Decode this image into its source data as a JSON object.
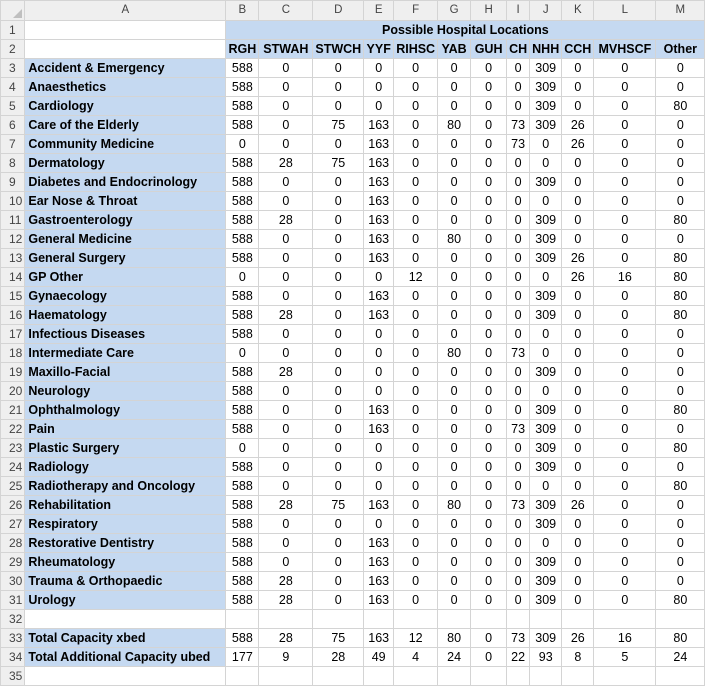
{
  "columns": [
    "A",
    "B",
    "C",
    "D",
    "E",
    "F",
    "G",
    "H",
    "I",
    "J",
    "K",
    "L",
    "M"
  ],
  "title": "Possible Hospital Locations",
  "headers": [
    "RGH",
    "STWAH",
    "STWCH",
    "YYF",
    "RIHSC",
    "YAB",
    "GUH",
    "CH",
    "NHH",
    "CCH",
    "MVHSCF",
    "Other"
  ],
  "rows": [
    {
      "n": "3",
      "label": "Accident & Emergency",
      "v": [
        "588",
        "0",
        "0",
        "0",
        "0",
        "0",
        "0",
        "0",
        "309",
        "0",
        "0",
        "0"
      ]
    },
    {
      "n": "4",
      "label": "Anaesthetics",
      "v": [
        "588",
        "0",
        "0",
        "0",
        "0",
        "0",
        "0",
        "0",
        "309",
        "0",
        "0",
        "0"
      ]
    },
    {
      "n": "5",
      "label": "Cardiology",
      "v": [
        "588",
        "0",
        "0",
        "0",
        "0",
        "0",
        "0",
        "0",
        "309",
        "0",
        "0",
        "80"
      ]
    },
    {
      "n": "6",
      "label": "Care of the Elderly",
      "v": [
        "588",
        "0",
        "75",
        "163",
        "0",
        "80",
        "0",
        "73",
        "309",
        "26",
        "0",
        "0"
      ]
    },
    {
      "n": "7",
      "label": "Community Medicine",
      "v": [
        "0",
        "0",
        "0",
        "163",
        "0",
        "0",
        "0",
        "73",
        "0",
        "26",
        "0",
        "0"
      ]
    },
    {
      "n": "8",
      "label": "Dermatology",
      "v": [
        "588",
        "28",
        "75",
        "163",
        "0",
        "0",
        "0",
        "0",
        "0",
        "0",
        "0",
        "0"
      ]
    },
    {
      "n": "9",
      "label": "Diabetes and Endocrinology",
      "v": [
        "588",
        "0",
        "0",
        "163",
        "0",
        "0",
        "0",
        "0",
        "309",
        "0",
        "0",
        "0"
      ]
    },
    {
      "n": "10",
      "label": "Ear Nose & Throat",
      "v": [
        "588",
        "0",
        "0",
        "163",
        "0",
        "0",
        "0",
        "0",
        "0",
        "0",
        "0",
        "0"
      ]
    },
    {
      "n": "11",
      "label": "Gastroenterology",
      "v": [
        "588",
        "28",
        "0",
        "163",
        "0",
        "0",
        "0",
        "0",
        "309",
        "0",
        "0",
        "80"
      ]
    },
    {
      "n": "12",
      "label": "General Medicine",
      "v": [
        "588",
        "0",
        "0",
        "163",
        "0",
        "80",
        "0",
        "0",
        "309",
        "0",
        "0",
        "0"
      ]
    },
    {
      "n": "13",
      "label": "General Surgery",
      "v": [
        "588",
        "0",
        "0",
        "163",
        "0",
        "0",
        "0",
        "0",
        "309",
        "26",
        "0",
        "80"
      ]
    },
    {
      "n": "14",
      "label": "GP Other",
      "v": [
        "0",
        "0",
        "0",
        "0",
        "12",
        "0",
        "0",
        "0",
        "0",
        "26",
        "16",
        "80"
      ]
    },
    {
      "n": "15",
      "label": "Gynaecology",
      "v": [
        "588",
        "0",
        "0",
        "163",
        "0",
        "0",
        "0",
        "0",
        "309",
        "0",
        "0",
        "80"
      ]
    },
    {
      "n": "16",
      "label": "Haematology",
      "v": [
        "588",
        "28",
        "0",
        "163",
        "0",
        "0",
        "0",
        "0",
        "309",
        "0",
        "0",
        "80"
      ]
    },
    {
      "n": "17",
      "label": "Infectious Diseases",
      "v": [
        "588",
        "0",
        "0",
        "0",
        "0",
        "0",
        "0",
        "0",
        "0",
        "0",
        "0",
        "0"
      ]
    },
    {
      "n": "18",
      "label": "Intermediate Care",
      "v": [
        "0",
        "0",
        "0",
        "0",
        "0",
        "80",
        "0",
        "73",
        "0",
        "0",
        "0",
        "0"
      ]
    },
    {
      "n": "19",
      "label": "Maxillo-Facial",
      "v": [
        "588",
        "28",
        "0",
        "0",
        "0",
        "0",
        "0",
        "0",
        "309",
        "0",
        "0",
        "0"
      ]
    },
    {
      "n": "20",
      "label": "Neurology",
      "v": [
        "588",
        "0",
        "0",
        "0",
        "0",
        "0",
        "0",
        "0",
        "0",
        "0",
        "0",
        "0"
      ]
    },
    {
      "n": "21",
      "label": "Ophthalmology",
      "v": [
        "588",
        "0",
        "0",
        "163",
        "0",
        "0",
        "0",
        "0",
        "309",
        "0",
        "0",
        "80"
      ]
    },
    {
      "n": "22",
      "label": "Pain",
      "v": [
        "588",
        "0",
        "0",
        "163",
        "0",
        "0",
        "0",
        "73",
        "309",
        "0",
        "0",
        "0"
      ]
    },
    {
      "n": "23",
      "label": "Plastic Surgery",
      "v": [
        "0",
        "0",
        "0",
        "0",
        "0",
        "0",
        "0",
        "0",
        "309",
        "0",
        "0",
        "80"
      ]
    },
    {
      "n": "24",
      "label": "Radiology",
      "v": [
        "588",
        "0",
        "0",
        "0",
        "0",
        "0",
        "0",
        "0",
        "309",
        "0",
        "0",
        "0"
      ]
    },
    {
      "n": "25",
      "label": "Radiotherapy and Oncology",
      "v": [
        "588",
        "0",
        "0",
        "0",
        "0",
        "0",
        "0",
        "0",
        "0",
        "0",
        "0",
        "80"
      ]
    },
    {
      "n": "26",
      "label": "Rehabilitation",
      "v": [
        "588",
        "28",
        "75",
        "163",
        "0",
        "80",
        "0",
        "73",
        "309",
        "26",
        "0",
        "0"
      ]
    },
    {
      "n": "27",
      "label": "Respiratory",
      "v": [
        "588",
        "0",
        "0",
        "0",
        "0",
        "0",
        "0",
        "0",
        "309",
        "0",
        "0",
        "0"
      ]
    },
    {
      "n": "28",
      "label": "Restorative Dentistry",
      "v": [
        "588",
        "0",
        "0",
        "163",
        "0",
        "0",
        "0",
        "0",
        "0",
        "0",
        "0",
        "0"
      ]
    },
    {
      "n": "29",
      "label": "Rheumatology",
      "v": [
        "588",
        "0",
        "0",
        "163",
        "0",
        "0",
        "0",
        "0",
        "309",
        "0",
        "0",
        "0"
      ]
    },
    {
      "n": "30",
      "label": "Trauma & Orthopaedic",
      "v": [
        "588",
        "28",
        "0",
        "163",
        "0",
        "0",
        "0",
        "0",
        "309",
        "0",
        "0",
        "0"
      ]
    },
    {
      "n": "31",
      "label": "Urology",
      "v": [
        "588",
        "28",
        "0",
        "163",
        "0",
        "0",
        "0",
        "0",
        "309",
        "0",
        "0",
        "80"
      ]
    }
  ],
  "blank_row": "32",
  "totals": [
    {
      "n": "33",
      "label": "Total Capacity xbed",
      "v": [
        "588",
        "28",
        "75",
        "163",
        "12",
        "80",
        "0",
        "73",
        "309",
        "26",
        "16",
        "80"
      ]
    },
    {
      "n": "34",
      "label": "Total Additional Capacity ubed",
      "v": [
        "177",
        "9",
        "28",
        "49",
        "4",
        "24",
        "0",
        "22",
        "93",
        "8",
        "5",
        "24"
      ]
    }
  ],
  "partial_row": "35",
  "row_numbers": {
    "r1": "1",
    "r2": "2"
  }
}
